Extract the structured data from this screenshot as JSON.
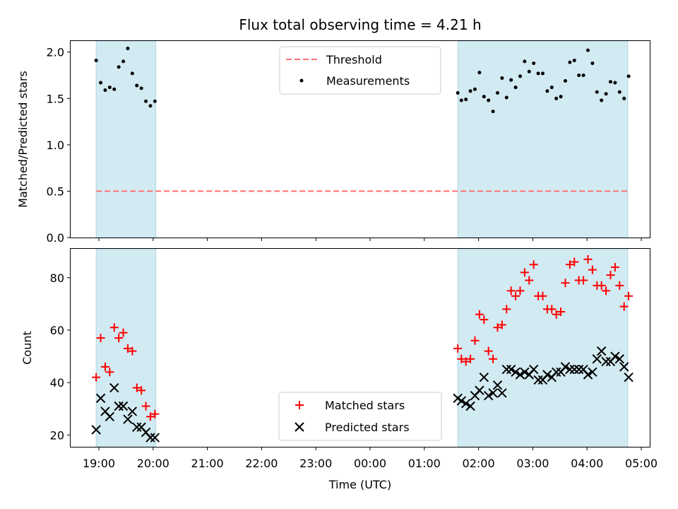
{
  "chart_data": {
    "title": "Flux total observing time = 4.21 h",
    "xlabel": "Time (UTC)",
    "x_ticks": [
      "19:00",
      "20:00",
      "21:00",
      "22:00",
      "23:00",
      "00:00",
      "01:00",
      "02:00",
      "03:00",
      "04:00",
      "05:00"
    ],
    "shaded_intervals": [
      [
        "18:57",
        "20:03"
      ],
      [
        "01:37",
        "04:45"
      ]
    ],
    "colors": {
      "shade": "#add8e6",
      "threshold": "#ff7070",
      "matched": "#ff0000",
      "predicted": "#000000",
      "measurements": "#000000"
    },
    "panels": [
      {
        "type": "scatter",
        "ylabel": "Matched/Predicted stars",
        "ylim": [
          0,
          2.12
        ],
        "y_ticks": [
          "0.0",
          "0.5",
          "1.0",
          "1.5",
          "2.0"
        ],
        "legend_position": "top-center",
        "threshold": {
          "name": "Threshold",
          "value": 0.5,
          "style": "dashed"
        },
        "series": [
          {
            "name": "Measurements",
            "marker": "dot",
            "points": [
              [
                "18:57",
                1.91
              ],
              [
                "19:02",
                1.67
              ],
              [
                "19:07",
                1.59
              ],
              [
                "19:12",
                1.62
              ],
              [
                "19:17",
                1.6
              ],
              [
                "19:22",
                1.84
              ],
              [
                "19:27",
                1.9
              ],
              [
                "19:32",
                2.04
              ],
              [
                "19:37",
                1.77
              ],
              [
                "19:42",
                1.64
              ],
              [
                "19:47",
                1.61
              ],
              [
                "19:52",
                1.47
              ],
              [
                "19:57",
                1.42
              ],
              [
                "20:02",
                1.47
              ],
              [
                "01:37",
                1.56
              ],
              [
                "01:41",
                1.48
              ],
              [
                "01:46",
                1.49
              ],
              [
                "01:51",
                1.58
              ],
              [
                "01:56",
                1.6
              ],
              [
                "02:01",
                1.78
              ],
              [
                "02:06",
                1.52
              ],
              [
                "02:11",
                1.48
              ],
              [
                "02:16",
                1.36
              ],
              [
                "02:21",
                1.56
              ],
              [
                "02:26",
                1.72
              ],
              [
                "02:31",
                1.51
              ],
              [
                "02:36",
                1.7
              ],
              [
                "02:41",
                1.62
              ],
              [
                "02:46",
                1.74
              ],
              [
                "02:51",
                1.9
              ],
              [
                "02:56",
                1.79
              ],
              [
                "03:01",
                1.88
              ],
              [
                "03:06",
                1.77
              ],
              [
                "03:11",
                1.77
              ],
              [
                "03:16",
                1.58
              ],
              [
                "03:21",
                1.62
              ],
              [
                "03:26",
                1.5
              ],
              [
                "03:31",
                1.52
              ],
              [
                "03:36",
                1.69
              ],
              [
                "03:41",
                1.89
              ],
              [
                "03:46",
                1.91
              ],
              [
                "03:51",
                1.75
              ],
              [
                "03:56",
                1.75
              ],
              [
                "04:01",
                2.02
              ],
              [
                "04:06",
                1.88
              ],
              [
                "04:11",
                1.57
              ],
              [
                "04:16",
                1.48
              ],
              [
                "04:21",
                1.55
              ],
              [
                "04:26",
                1.68
              ],
              [
                "04:31",
                1.67
              ],
              [
                "04:36",
                1.57
              ],
              [
                "04:41",
                1.5
              ],
              [
                "04:46",
                1.74
              ]
            ]
          }
        ]
      },
      {
        "type": "scatter",
        "ylabel": "Count",
        "ylim": [
          15.5,
          91
        ],
        "y_ticks": [
          "20",
          "40",
          "60",
          "80"
        ],
        "legend_position": "bottom-center",
        "series": [
          {
            "name": "Matched stars",
            "marker": "plus",
            "points": [
              [
                "18:57",
                42
              ],
              [
                "19:02",
                57
              ],
              [
                "19:07",
                46
              ],
              [
                "19:12",
                44
              ],
              [
                "19:17",
                61
              ],
              [
                "19:22",
                57
              ],
              [
                "19:27",
                59
              ],
              [
                "19:32",
                53
              ],
              [
                "19:37",
                52
              ],
              [
                "19:42",
                38
              ],
              [
                "19:47",
                37
              ],
              [
                "19:52",
                31
              ],
              [
                "19:57",
                27
              ],
              [
                "20:02",
                28
              ],
              [
                "01:37",
                53
              ],
              [
                "01:41",
                49
              ],
              [
                "01:46",
                48
              ],
              [
                "01:51",
                49
              ],
              [
                "01:56",
                56
              ],
              [
                "02:01",
                66
              ],
              [
                "02:06",
                64
              ],
              [
                "02:11",
                52
              ],
              [
                "02:16",
                49
              ],
              [
                "02:21",
                61
              ],
              [
                "02:26",
                62
              ],
              [
                "02:31",
                68
              ],
              [
                "02:36",
                75
              ],
              [
                "02:41",
                73
              ],
              [
                "02:46",
                75
              ],
              [
                "02:51",
                82
              ],
              [
                "02:56",
                79
              ],
              [
                "03:01",
                85
              ],
              [
                "03:06",
                73
              ],
              [
                "03:11",
                73
              ],
              [
                "03:16",
                68
              ],
              [
                "03:21",
                68
              ],
              [
                "03:26",
                66
              ],
              [
                "03:31",
                67
              ],
              [
                "03:36",
                78
              ],
              [
                "03:41",
                85
              ],
              [
                "03:46",
                86
              ],
              [
                "03:51",
                79
              ],
              [
                "03:56",
                79
              ],
              [
                "04:01",
                87
              ],
              [
                "04:06",
                83
              ],
              [
                "04:11",
                77
              ],
              [
                "04:16",
                77
              ],
              [
                "04:21",
                75
              ],
              [
                "04:26",
                81
              ],
              [
                "04:31",
                84
              ],
              [
                "04:36",
                77
              ],
              [
                "04:41",
                69
              ],
              [
                "04:46",
                73
              ]
            ]
          },
          {
            "name": "Predicted stars",
            "marker": "x",
            "points": [
              [
                "18:57",
                22
              ],
              [
                "19:02",
                34
              ],
              [
                "19:07",
                29
              ],
              [
                "19:12",
                27
              ],
              [
                "19:17",
                38
              ],
              [
                "19:22",
                31
              ],
              [
                "19:27",
                31
              ],
              [
                "19:32",
                26
              ],
              [
                "19:37",
                29
              ],
              [
                "19:42",
                23
              ],
              [
                "19:47",
                23
              ],
              [
                "19:52",
                21
              ],
              [
                "19:57",
                19
              ],
              [
                "20:02",
                19
              ],
              [
                "01:37",
                34
              ],
              [
                "01:41",
                33
              ],
              [
                "01:46",
                32
              ],
              [
                "01:51",
                31
              ],
              [
                "01:56",
                35
              ],
              [
                "02:01",
                37
              ],
              [
                "02:06",
                42
              ],
              [
                "02:11",
                35
              ],
              [
                "02:16",
                36
              ],
              [
                "02:21",
                39
              ],
              [
                "02:26",
                36
              ],
              [
                "02:31",
                45
              ],
              [
                "02:36",
                45
              ],
              [
                "02:41",
                44
              ],
              [
                "02:46",
                43
              ],
              [
                "02:51",
                44
              ],
              [
                "02:56",
                43
              ],
              [
                "03:01",
                45
              ],
              [
                "03:06",
                41
              ],
              [
                "03:11",
                41
              ],
              [
                "03:16",
                43
              ],
              [
                "03:21",
                42
              ],
              [
                "03:26",
                44
              ],
              [
                "03:31",
                44
              ],
              [
                "03:36",
                46
              ],
              [
                "03:41",
                45
              ],
              [
                "03:46",
                45
              ],
              [
                "03:51",
                45
              ],
              [
                "03:56",
                45
              ],
              [
                "04:01",
                43
              ],
              [
                "04:06",
                44
              ],
              [
                "04:11",
                49
              ],
              [
                "04:16",
                52
              ],
              [
                "04:21",
                48
              ],
              [
                "04:26",
                48
              ],
              [
                "04:31",
                50
              ],
              [
                "04:36",
                49
              ],
              [
                "04:41",
                46
              ],
              [
                "04:46",
                42
              ]
            ]
          }
        ]
      }
    ]
  }
}
